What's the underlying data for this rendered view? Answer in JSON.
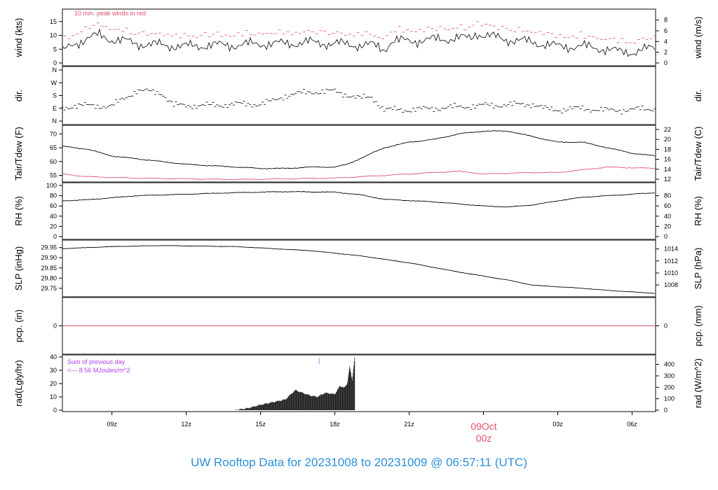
{
  "title": "UW Rooftop Data for 20231008  to  20231009 @ 06:57:11  (UTC)",
  "colors": {
    "title": "#2b90d9",
    "peak": "#e0506e",
    "annot": "#b040f0",
    "line": "#000000",
    "date": "#df536b"
  },
  "chart_data": [
    {
      "id": "wind",
      "type": "line",
      "ylabel": "wind (kts)",
      "ylabel_right": "wind (m/s)",
      "ylim": [
        0,
        18.5
      ],
      "yticks": [
        0,
        5,
        10,
        15
      ],
      "yticks_right": [
        "0",
        "2",
        "4",
        "6",
        "8"
      ],
      "yticks_right_values": [
        0,
        2,
        4,
        6,
        8
      ],
      "annotation": "10 min. peak winds in red",
      "x": [
        7,
        7.5,
        8,
        8.5,
        9,
        9.5,
        10,
        11,
        12,
        13,
        14,
        15,
        16,
        17,
        18,
        19,
        19.5,
        20,
        20.3,
        21,
        22,
        23,
        23.5,
        23.7,
        24,
        25,
        26,
        27,
        28,
        29,
        29.5,
        30,
        30.95
      ],
      "values": [
        4,
        7,
        9,
        10,
        8.5,
        8,
        7,
        6.5,
        6,
        6.5,
        6.5,
        7,
        7,
        7.5,
        7,
        6.5,
        6.5,
        5,
        8,
        8,
        8.5,
        9,
        9,
        11,
        10,
        8.5,
        7.5,
        6,
        6,
        5,
        4,
        4,
        5.5
      ],
      "peak_offset_kts": 3
    },
    {
      "id": "dir",
      "type": "scatter",
      "ylabel": "dir.",
      "ylabel_right": "dir.",
      "ylim": [
        0,
        360
      ],
      "yticks": [
        "N",
        "E",
        "S",
        "W",
        "N"
      ],
      "yticks_values": [
        0,
        90,
        180,
        270,
        360
      ],
      "x": [
        7,
        7.5,
        9,
        10,
        11,
        11.5,
        13,
        14,
        15,
        15.5,
        16,
        17,
        18,
        19,
        19.5,
        20,
        21,
        22,
        23,
        24,
        25,
        26,
        26.5,
        27,
        28,
        29,
        30,
        30.95
      ],
      "values": [
        90,
        110,
        105,
        215,
        200,
        110,
        110,
        120,
        120,
        140,
        180,
        205,
        210,
        160,
        170,
        80,
        80,
        90,
        100,
        110,
        115,
        120,
        85,
        80,
        90,
        75,
        80,
        90
      ]
    },
    {
      "id": "temp",
      "type": "line",
      "ylabel": "Tair/Tdew (F)",
      "ylabel_right": "Tair/Tdew (C)",
      "ylim": [
        53.1,
        72.6
      ],
      "yticks": [
        55,
        60,
        65,
        70
      ],
      "yticks_right": [
        "12",
        "14",
        "16",
        "18",
        "20",
        "22"
      ],
      "yticks_right_values": [
        12,
        14,
        16,
        18,
        20,
        22
      ],
      "series": [
        {
          "name": "Tair",
          "x": [
            7,
            8,
            9,
            10,
            11,
            12,
            13,
            14,
            15,
            16,
            17,
            18,
            18.5,
            19,
            19.5,
            20,
            21,
            22,
            23,
            24,
            25,
            26,
            27,
            28,
            29,
            30,
            30.95
          ],
          "values": [
            65.5,
            64.5,
            62,
            61,
            60,
            59,
            58.5,
            58,
            57.5,
            57.5,
            58,
            58,
            59,
            61,
            63,
            65,
            67,
            68,
            70,
            71,
            71,
            69,
            67,
            67,
            65,
            63,
            62
          ]
        },
        {
          "name": "Tdew",
          "x": [
            7,
            8,
            10,
            14,
            18,
            20,
            22,
            23,
            24,
            26,
            27,
            28,
            29,
            30.95
          ],
          "values": [
            55.5,
            54.5,
            54,
            53.5,
            54,
            55,
            56,
            56.5,
            55.5,
            56,
            56,
            57,
            58,
            57.5
          ]
        }
      ]
    },
    {
      "id": "rh",
      "type": "line",
      "ylabel": "RH (%)",
      "ylabel_right": "RH (%)",
      "ylim": [
        0,
        100
      ],
      "yticks": [
        0,
        20,
        40,
        60,
        80,
        100
      ],
      "yticks_right": [
        "0",
        "20",
        "40",
        "60",
        "80"
      ],
      "yticks_right_values": [
        0,
        20,
        40,
        60,
        80
      ],
      "x": [
        7,
        8,
        10,
        14,
        16,
        18,
        19,
        20,
        22,
        24,
        25,
        26,
        27,
        28,
        30,
        30.95
      ],
      "values": [
        70,
        72,
        80,
        86,
        88,
        87,
        82,
        73,
        68,
        60,
        58,
        62,
        70,
        77,
        83,
        86
      ]
    },
    {
      "id": "slp",
      "type": "line",
      "ylabel": "SLP (inHg)",
      "ylabel_right": "SLP (hPa)",
      "ylim": [
        29.715,
        29.98
      ],
      "yticks": [
        "29.75",
        "29.80",
        "29.85",
        "29.90",
        "29.95"
      ],
      "yticks_values": [
        29.75,
        29.8,
        29.85,
        29.9,
        29.95
      ],
      "yticks_right": [
        "1008",
        "1010",
        "1012",
        "1014"
      ],
      "yticks_right_values": [
        1008,
        1010,
        1012,
        1014
      ],
      "x": [
        7,
        9,
        11,
        14,
        17,
        19,
        21,
        23,
        25,
        26,
        28,
        29,
        30.95
      ],
      "values": [
        29.945,
        29.955,
        29.96,
        29.955,
        29.935,
        29.91,
        29.875,
        29.83,
        29.79,
        29.765,
        29.75,
        29.74,
        29.725
      ]
    },
    {
      "id": "pcp",
      "type": "line",
      "ylabel": "pcp. (in)",
      "ylabel_right": "pcp. (mm)",
      "ylim": [
        -1,
        1
      ],
      "yticks": [
        "0"
      ],
      "yticks_values": [
        0
      ],
      "yticks_right": [
        "0"
      ],
      "yticks_right_values": [
        0
      ],
      "x": [
        7,
        30.95
      ],
      "values": [
        0,
        0
      ]
    },
    {
      "id": "rad",
      "type": "bar",
      "ylabel": "rad(Lgly/hr)",
      "ylabel_right": "rad (W/m^2)",
      "ylim": [
        0,
        40.5
      ],
      "yticks": [
        0,
        10,
        20,
        30,
        40
      ],
      "yticks_right": [
        "0",
        "100",
        "200",
        "300",
        "400"
      ],
      "yticks_right_values": [
        0,
        100,
        200,
        300,
        400
      ],
      "annotation_line1": "Sum of previous day",
      "annotation_line2": "<--- 8.56 MJoules/m^2",
      "marker": "|",
      "x": [
        14.0,
        14.5,
        15,
        15.5,
        16,
        16.4,
        16.7,
        17,
        17.3,
        17.6,
        18,
        18.2,
        18.4,
        18.5,
        18.6,
        18.7,
        18.8
      ],
      "values": [
        0.2,
        1.5,
        4,
        6,
        8,
        15,
        13,
        11,
        10,
        13,
        12,
        18,
        17,
        20,
        33,
        22,
        40
      ]
    }
  ],
  "xaxis": {
    "xlim_hours": [
      7,
      30.95
    ],
    "ticks": [
      "09z",
      "12z",
      "15z",
      "18z",
      "21z",
      "00z",
      "03z",
      "06z"
    ],
    "tick_hours": [
      9,
      12,
      15,
      18,
      21,
      24,
      27,
      30
    ],
    "date_label": "09Oct",
    "date_sub": "00z"
  }
}
